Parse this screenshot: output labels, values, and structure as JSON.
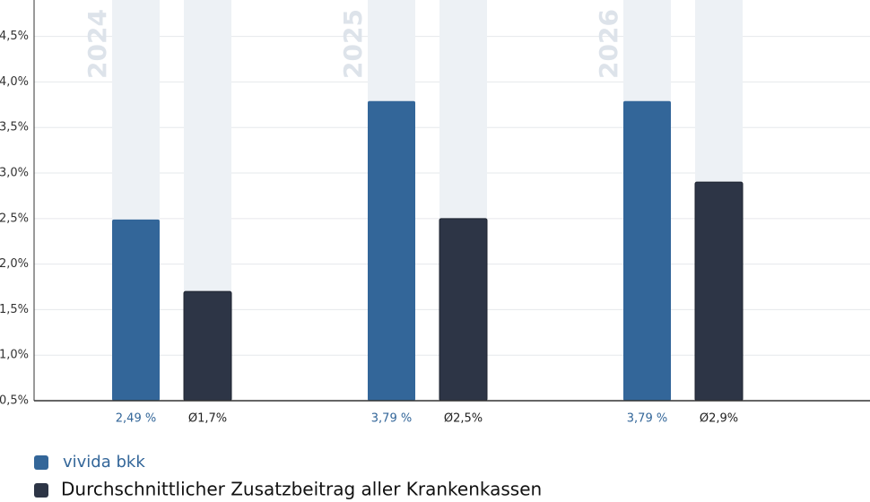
{
  "chart_data": {
    "type": "bar",
    "categories": [
      "2024",
      "2025",
      "2026"
    ],
    "series": [
      {
        "name": "vivida bkk",
        "color": "#336699",
        "values": [
          2.49,
          3.79,
          3.79
        ],
        "value_labels": [
          "2,49 %",
          "3,79 %",
          "3,79 %"
        ]
      },
      {
        "name": "Durchschnittlicher Zusatzbeitrag aller Krankenkassen",
        "color": "#2d3546",
        "values": [
          1.7,
          2.5,
          2.9
        ],
        "value_labels": [
          "Ø1,7%",
          "Ø2,5%",
          "Ø2,9%"
        ]
      }
    ],
    "ylim": [
      0.5,
      4.9
    ],
    "yticks": [
      {
        "value": 0.5,
        "label": "0,5%"
      },
      {
        "value": 1.0,
        "label": "1,0%"
      },
      {
        "value": 1.5,
        "label": "1,5%"
      },
      {
        "value": 2.0,
        "label": "2,0%"
      },
      {
        "value": 2.5,
        "label": "2,5%"
      },
      {
        "value": 3.0,
        "label": "3,0%"
      },
      {
        "value": 3.5,
        "label": "3,5%"
      },
      {
        "value": 4.0,
        "label": "4,0%"
      },
      {
        "value": 4.5,
        "label": "4,5%"
      }
    ],
    "grid": true
  }
}
